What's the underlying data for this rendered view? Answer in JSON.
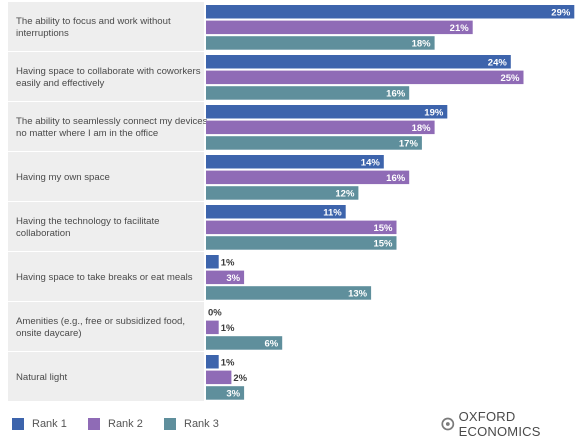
{
  "chart_data": {
    "type": "bar",
    "orientation": "horizontal",
    "categories": [
      "The ability to focus and work without interruptions",
      "Having space to collaborate with coworkers easily and effectively",
      "The ability to seamlessly connect my devices no matter where I am in the office",
      "Having my own space",
      "Having the technology to facilitate collaboration",
      "Having space to take breaks or eat meals",
      "Amenities (e.g., free or subsidized food, onsite daycare)",
      "Natural light"
    ],
    "series": [
      {
        "name": "Rank 1",
        "color": "#3d64ac",
        "values": [
          29,
          24,
          19,
          14,
          11,
          1,
          0,
          1
        ]
      },
      {
        "name": "Rank 2",
        "color": "#8f6bb6",
        "values": [
          21,
          25,
          18,
          16,
          15,
          3,
          1,
          2
        ]
      },
      {
        "name": "Rank 3",
        "color": "#5f8f9c",
        "values": [
          18,
          16,
          17,
          12,
          15,
          13,
          6,
          3
        ]
      }
    ],
    "value_suffix": "%",
    "legend_position": "bottom-left",
    "grid": false
  },
  "legend": {
    "items": [
      {
        "label": "Rank 1",
        "color": "#3d64ac"
      },
      {
        "label": "Rank 2",
        "color": "#8f6bb6"
      },
      {
        "label": "Rank 3",
        "color": "#5f8f9c"
      }
    ]
  },
  "brand": {
    "text": "OXFORD ECONOMICS",
    "icon": "oxford-economics-logo-icon"
  },
  "colors": {
    "row_background": "#eeeeee",
    "category_text": "#4a4a4a",
    "value_text": "#3a3a3a"
  }
}
